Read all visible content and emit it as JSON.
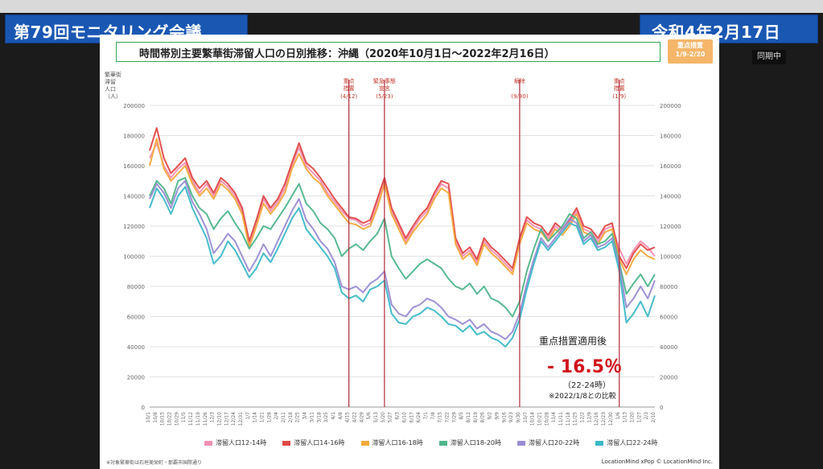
{
  "banners": {
    "left": "第79回モニタリング会議",
    "right": "令和4年2月17日"
  },
  "chart_data": {
    "type": "line",
    "title": "時間帯別主要繁華街滞留人口の日別推移：沖縄（2020年10月1日～2022年2月16日）",
    "badge_line1": "重点措置",
    "badge_line2": "1/9-2/20",
    "ylabel": "繁華街滞留人口（人）",
    "ylabel_lines": [
      "繁華街",
      "滞留",
      "人口",
      "（人）"
    ],
    "ylim": [
      0,
      200000
    ],
    "yticks": [
      0,
      20000,
      40000,
      60000,
      80000,
      100000,
      120000,
      140000,
      160000,
      180000,
      200000
    ],
    "categories": [
      "10/1",
      "10/8",
      "10/15",
      "10/22",
      "10/29",
      "11/5",
      "11/12",
      "11/19",
      "11/26",
      "12/3",
      "12/10",
      "12/17",
      "12/24",
      "12/31",
      "1/7",
      "1/14",
      "1/21",
      "1/28",
      "2/4",
      "2/11",
      "2/18",
      "2/25",
      "3/4",
      "3/11",
      "3/18",
      "3/25",
      "4/1",
      "4/8",
      "4/15",
      "4/22",
      "4/29",
      "5/6",
      "5/13",
      "5/20",
      "5/27",
      "6/3",
      "6/10",
      "6/17",
      "6/24",
      "7/1",
      "7/8",
      "7/15",
      "7/22",
      "7/29",
      "8/5",
      "8/12",
      "8/19",
      "8/26",
      "9/2",
      "9/9",
      "9/16",
      "9/23",
      "9/30",
      "10/7",
      "10/14",
      "10/21",
      "10/28",
      "11/4",
      "11/11",
      "11/18",
      "11/25",
      "12/2",
      "12/9",
      "12/16",
      "12/23",
      "12/30",
      "1/6",
      "1/13",
      "1/20",
      "1/27",
      "2/3",
      "2/10"
    ],
    "events": [
      {
        "index": 28,
        "label1": "重点",
        "label2": "措置",
        "date": "(4/12)"
      },
      {
        "index": 33,
        "label1": "緊急事態",
        "label2": "宣言",
        "date": "(5/23)"
      },
      {
        "index": 52,
        "label1": "解除",
        "label2": "",
        "date": "(9/30)"
      },
      {
        "index": 66,
        "label1": "重点",
        "label2": "措置",
        "date": "(1/9)"
      }
    ],
    "series": [
      {
        "name": "滞留人口12-14時",
        "color": "#f28fb3",
        "values": [
          165000,
          175000,
          160000,
          152000,
          158000,
          162000,
          150000,
          142000,
          148000,
          140000,
          150000,
          146000,
          140000,
          130000,
          108000,
          122000,
          138000,
          130000,
          136000,
          145000,
          160000,
          172000,
          160000,
          155000,
          150000,
          142000,
          136000,
          130000,
          125000,
          124000,
          120000,
          122000,
          135000,
          150000,
          130000,
          120000,
          110000,
          118000,
          125000,
          130000,
          140000,
          148000,
          145000,
          110000,
          100000,
          104000,
          96000,
          110000,
          104000,
          100000,
          95000,
          90000,
          110000,
          124000,
          120000,
          118000,
          112000,
          120000,
          116000,
          122000,
          130000,
          118000,
          116000,
          110000,
          118000,
          120000,
          105000,
          95000,
          104000,
          110000,
          106000,
          100000
        ]
      },
      {
        "name": "滞留人口14-16時",
        "color": "#e04848",
        "values": [
          170000,
          185000,
          165000,
          155000,
          160000,
          165000,
          152000,
          145000,
          150000,
          142000,
          152000,
          148000,
          142000,
          132000,
          110000,
          124000,
          140000,
          132000,
          138000,
          148000,
          162000,
          175000,
          162000,
          158000,
          152000,
          145000,
          138000,
          132000,
          126000,
          125000,
          122000,
          124000,
          138000,
          152000,
          132000,
          122000,
          112000,
          120000,
          127000,
          132000,
          142000,
          150000,
          148000,
          112000,
          102000,
          106000,
          98000,
          112000,
          106000,
          102000,
          97000,
          92000,
          112000,
          126000,
          122000,
          120000,
          114000,
          122000,
          118000,
          124000,
          132000,
          120000,
          118000,
          112000,
          120000,
          122000,
          100000,
          92000,
          102000,
          108000,
          104000,
          106000
        ]
      },
      {
        "name": "滞留人口16-18時",
        "color": "#f2a93b",
        "values": [
          160000,
          178000,
          158000,
          150000,
          155000,
          160000,
          148000,
          140000,
          145000,
          138000,
          148000,
          144000,
          138000,
          128000,
          106000,
          120000,
          135000,
          128000,
          134000,
          142000,
          158000,
          168000,
          158000,
          152000,
          148000,
          140000,
          134000,
          128000,
          122000,
          121000,
          118000,
          120000,
          132000,
          148000,
          128000,
          118000,
          108000,
          116000,
          122000,
          128000,
          138000,
          145000,
          142000,
          108000,
          98000,
          102000,
          94000,
          108000,
          102000,
          98000,
          93000,
          88000,
          108000,
          122000,
          118000,
          116000,
          110000,
          118000,
          114000,
          120000,
          128000,
          116000,
          114000,
          108000,
          116000,
          118000,
          98000,
          88000,
          98000,
          104000,
          100000,
          98000
        ]
      },
      {
        "name": "滞留人口18-20時",
        "color": "#4fb58a",
        "values": [
          140000,
          150000,
          145000,
          135000,
          150000,
          152000,
          140000,
          132000,
          128000,
          118000,
          125000,
          130000,
          122000,
          115000,
          105000,
          112000,
          120000,
          118000,
          125000,
          132000,
          140000,
          148000,
          135000,
          130000,
          122000,
          118000,
          112000,
          100000,
          105000,
          108000,
          104000,
          110000,
          115000,
          125000,
          100000,
          92000,
          85000,
          90000,
          95000,
          98000,
          95000,
          92000,
          85000,
          80000,
          78000,
          82000,
          75000,
          80000,
          72000,
          70000,
          66000,
          60000,
          70000,
          90000,
          105000,
          118000,
          110000,
          115000,
          120000,
          128000,
          125000,
          112000,
          116000,
          108000,
          110000,
          115000,
          96000,
          75000,
          82000,
          88000,
          80000,
          88000
        ]
      },
      {
        "name": "滞留人口20-22時",
        "color": "#9b8bd4",
        "values": [
          138000,
          148000,
          142000,
          132000,
          145000,
          150000,
          136000,
          128000,
          118000,
          102000,
          108000,
          115000,
          110000,
          100000,
          90000,
          98000,
          108000,
          100000,
          110000,
          120000,
          130000,
          138000,
          124000,
          118000,
          110000,
          105000,
          96000,
          80000,
          78000,
          80000,
          76000,
          82000,
          85000,
          90000,
          68000,
          62000,
          60000,
          66000,
          68000,
          72000,
          70000,
          66000,
          60000,
          58000,
          55000,
          58000,
          52000,
          55000,
          50000,
          48000,
          45000,
          50000,
          62000,
          82000,
          98000,
          112000,
          106000,
          112000,
          118000,
          125000,
          122000,
          110000,
          114000,
          106000,
          108000,
          112000,
          94000,
          66000,
          72000,
          80000,
          72000,
          84000
        ]
      },
      {
        "name": "滞留人口22-24時",
        "color": "#3cb8c8",
        "values": [
          132000,
          145000,
          138000,
          128000,
          140000,
          146000,
          132000,
          122000,
          112000,
          95000,
          100000,
          110000,
          104000,
          95000,
          86000,
          92000,
          102000,
          96000,
          105000,
          115000,
          125000,
          132000,
          118000,
          112000,
          106000,
          100000,
          92000,
          76000,
          72000,
          74000,
          70000,
          78000,
          80000,
          84000,
          62000,
          56000,
          55000,
          60000,
          62000,
          66000,
          64000,
          60000,
          55000,
          54000,
          50000,
          54000,
          48000,
          50000,
          46000,
          44000,
          40000,
          46000,
          58000,
          78000,
          95000,
          110000,
          104000,
          110000,
          116000,
          122000,
          120000,
          108000,
          112000,
          104000,
          106000,
          110000,
          90000,
          56000,
          62000,
          70000,
          60000,
          74000
        ]
      }
    ],
    "annotation": {
      "title": "重点措置適用後",
      "value": "- 16.5％",
      "sub": "（22-24時）",
      "note": "※2022/1/8との比較"
    }
  },
  "legend": [
    "滞留人口12-14時",
    "滞留人口14-16時",
    "滞留人口16-18時",
    "滞留人口18-20時",
    "滞留人口20-22時",
    "滞留人口22-24時"
  ],
  "footnote": "※対象繁華街は石垣美栄町・那覇市国際通り",
  "copyright": "LocationMind xPop © LocationMind Inc.",
  "sync_label": "同期中"
}
